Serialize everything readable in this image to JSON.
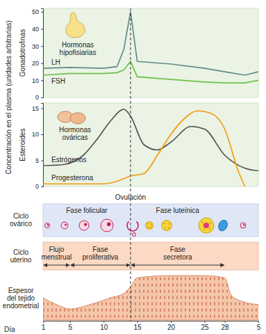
{
  "shared_ylabel": "Concentración en el plasma (unidades arbitrarias)",
  "chart_data": [
    {
      "type": "line",
      "title": "Hormonas hipofisiarias",
      "ylabel": "Gonadotrofinas",
      "xlim": [
        1,
        33
      ],
      "ylim": [
        0,
        52
      ],
      "yticks": [
        0,
        10,
        20,
        30,
        40,
        50
      ],
      "tick_labels": "y",
      "series": [
        {
          "name": "LH",
          "color": "#5f8a8b",
          "x": [
            1,
            5,
            10,
            12,
            13,
            14,
            15,
            20,
            25,
            28,
            31,
            33
          ],
          "values": [
            17,
            17.5,
            17,
            18,
            28,
            50,
            21,
            19.5,
            17,
            15,
            13,
            15
          ]
        },
        {
          "name": "FSH",
          "color": "#6dbf4b",
          "x": [
            1,
            5,
            10,
            12,
            13,
            14,
            15,
            20,
            25,
            28,
            31,
            33
          ],
          "values": [
            13,
            14,
            14,
            14.5,
            16,
            21,
            12,
            10.5,
            9,
            8.5,
            8.5,
            10
          ]
        }
      ]
    },
    {
      "type": "line",
      "title": "Hormonas ováricas",
      "ylabel": "Esteroides",
      "xlim": [
        1,
        33
      ],
      "ylim": [
        0,
        16
      ],
      "yticks": [
        0,
        5,
        10,
        15
      ],
      "tick_labels": "y",
      "series": [
        {
          "name": "Estrógenos",
          "color": "#555555",
          "x": [
            1,
            4,
            7,
            9,
            11,
            13,
            14,
            16,
            18,
            20,
            23,
            25,
            28,
            31,
            33
          ],
          "values": [
            4,
            4.2,
            6,
            9,
            12.5,
            14.8,
            13.5,
            8,
            7,
            8.5,
            11.5,
            11,
            6,
            3.5,
            3
          ]
        },
        {
          "name": "Progesterona",
          "color": "#f39c12",
          "x": [
            1,
            10,
            12,
            14,
            16,
            18,
            20,
            22,
            24,
            26,
            28,
            30,
            31
          ],
          "values": [
            0.5,
            0.5,
            1,
            2,
            2.5,
            6,
            10,
            13,
            14.5,
            14,
            11,
            3,
            0
          ]
        }
      ]
    }
  ],
  "ovulation": {
    "label": "Ovulación",
    "day": 14
  },
  "ovarian_cycle": {
    "label": "Ciclo ovárico",
    "phases": [
      {
        "label": "Fase folicular",
        "start": 1,
        "end": 14
      },
      {
        "label": "Fase luteínica",
        "start": 14,
        "end": 28
      }
    ]
  },
  "uterine_cycle": {
    "label": "Ciclo uterino",
    "phases": [
      {
        "label": "Flujo menstrual",
        "start": 1,
        "end": 5
      },
      {
        "label": "Fase proliferativa",
        "start": 5,
        "end": 14
      },
      {
        "label": "Fase secretora",
        "start": 14,
        "end": 28
      }
    ]
  },
  "endometrium": {
    "label": "Espesor del tejido endometrial",
    "x": [
      1,
      3,
      5,
      8,
      11,
      13,
      14,
      15,
      20,
      25,
      28,
      29,
      31,
      33
    ],
    "thickness": [
      0.5,
      0.35,
      0.25,
      0.35,
      0.5,
      0.6,
      0.75,
      0.95,
      1,
      1,
      0.95,
      0.55,
      0.4,
      0.35
    ],
    "ylim": [
      0,
      1
    ]
  },
  "day_axis": {
    "label": "Día",
    "xlim": [
      1,
      33
    ],
    "xticks": [
      1,
      5,
      10,
      15,
      20,
      25,
      28,
      {
        "value": 33,
        "label": "5"
      }
    ]
  }
}
